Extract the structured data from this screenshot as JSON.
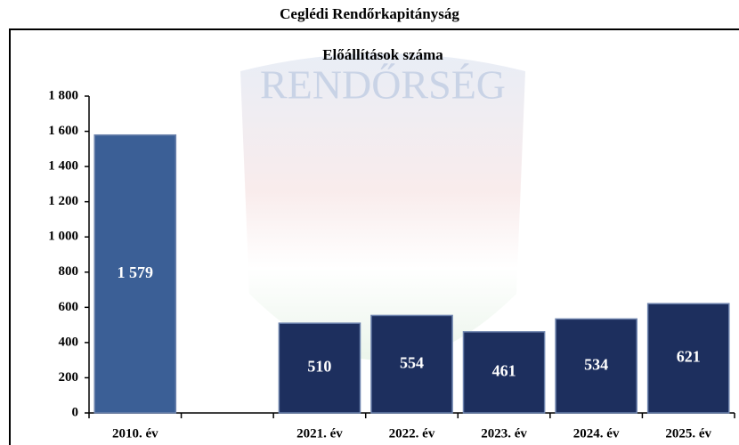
{
  "chart_data": {
    "type": "bar",
    "title": "Ceglédi Rendőrkapitányság",
    "subtitle": "Előállítások száma",
    "watermark": "RENDŐRSÉG",
    "categories": [
      "2010. év",
      null,
      "2021. év",
      "2022. év",
      "2023. év",
      "2024. év",
      "2025. év"
    ],
    "values": [
      1579,
      null,
      510,
      554,
      461,
      534,
      621
    ],
    "value_labels": [
      "1 579",
      null,
      "510",
      "554",
      "461",
      "534",
      "621"
    ],
    "colors": [
      "#3b5f96",
      null,
      "#1d2f5e",
      "#1d2f5e",
      "#1d2f5e",
      "#1d2f5e",
      "#1d2f5e"
    ],
    "ylim": [
      0,
      1800
    ],
    "yticks": [
      0,
      200,
      400,
      600,
      800,
      {
        "value": 1000,
        "label": "1 000"
      },
      {
        "value": 1200,
        "label": "1 200"
      },
      {
        "value": 1400,
        "label": "1 400"
      },
      {
        "value": 1600,
        "label": "1 600"
      },
      {
        "value": 1800,
        "label": "1 800"
      }
    ],
    "grid": false
  }
}
